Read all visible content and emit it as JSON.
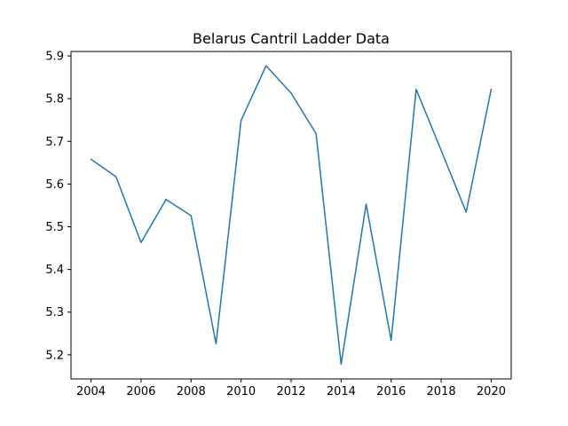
{
  "chart_data": {
    "type": "line",
    "title": "Belarus Cantril Ladder Data",
    "xlabel": "",
    "ylabel": "",
    "xlim": [
      2003.2,
      2020.8
    ],
    "ylim": [
      5.1435,
      5.9105
    ],
    "x_ticks": [
      2004,
      2006,
      2008,
      2010,
      2012,
      2014,
      2016,
      2018,
      2020
    ],
    "y_ticks": [
      5.2,
      5.3,
      5.4,
      5.5,
      5.6,
      5.7,
      5.8,
      5.9
    ],
    "grid": false,
    "legend": "none",
    "series": [
      {
        "color": "#1f77b4",
        "x": [
          2004,
          2005,
          2006,
          2007,
          2008,
          2009,
          2010,
          2011,
          2012,
          2013,
          2014,
          2015,
          2016,
          2017,
          2018,
          2019,
          2020
        ],
        "y": [
          5.658,
          5.617,
          5.463,
          5.564,
          5.526,
          5.226,
          5.749,
          5.877,
          5.813,
          5.718,
          5.178,
          5.553,
          5.234,
          5.822,
          5.679,
          5.534,
          5.822
        ]
      }
    ]
  }
}
